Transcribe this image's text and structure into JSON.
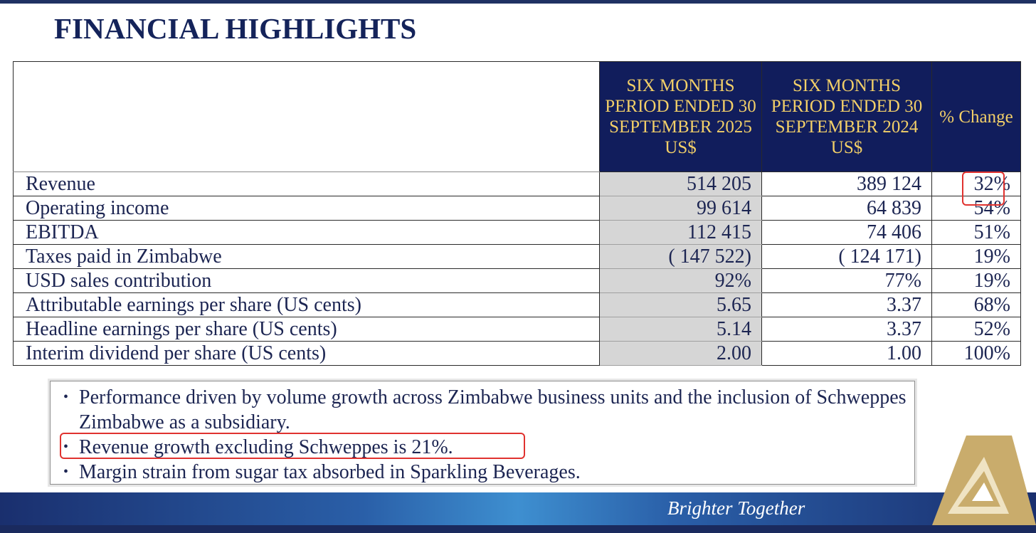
{
  "title": "FINANCIAL HIGHLIGHTS",
  "table": {
    "headers": {
      "current": "SIX MONTHS PERIOD ENDED 30 SEPTEMBER 2025 US$",
      "prior": "SIX MONTHS PERIOD ENDED 30 SEPTEMBER 2024 US$",
      "change": "% Change"
    },
    "rows": [
      {
        "label": "Revenue",
        "current": "514 205",
        "prior": "389 124",
        "change": "32%"
      },
      {
        "label": "Operating income",
        "current": "99 614",
        "prior": "64 839",
        "change": "54%"
      },
      {
        "label": "EBITDA",
        "current": "112 415",
        "prior": "74 406",
        "change": "51%"
      },
      {
        "label": "Taxes paid in Zimbabwe",
        "current": "( 147 522)",
        "prior": "( 124 171)",
        "change": "19%"
      },
      {
        "label": "USD sales contribution",
        "current": "92%",
        "prior": "77%",
        "change": "19%"
      },
      {
        "label": "Attributable  earnings per share (US cents)",
        "current": "5.65",
        "prior": "3.37",
        "change": "68%"
      },
      {
        "label": "Headline earnings per share (US cents)",
        "current": "5.14",
        "prior": "3.37",
        "change": "52%"
      },
      {
        "label": "Interim dividend per share (US cents)",
        "current": "2.00",
        "prior": "1.00",
        "change": "100%"
      }
    ]
  },
  "notes": [
    "Performance driven by volume growth across Zimbabwe business units and the inclusion of Schweppes Zimbabwe as a subsidiary.",
    "Revenue growth excluding Schweppes is 21%.",
    "Margin strain from sugar tax absorbed in Sparkling Beverages."
  ],
  "footer": {
    "tagline": "Brighter Together"
  },
  "colors": {
    "navy": "#111d5c",
    "gold": "#f2cf68",
    "highlight": "#e0322f"
  }
}
